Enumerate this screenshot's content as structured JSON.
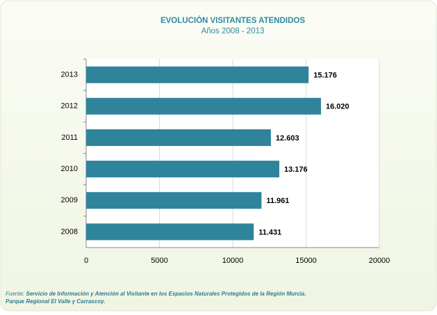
{
  "chart_data": {
    "type": "barh",
    "title": "EVOLUCIÓN VISITANTES ATENDIDOS",
    "subtitle": "Años 2008 - 2013",
    "categories": [
      "2013",
      "2012",
      "2011",
      "2010",
      "2009",
      "2008"
    ],
    "values": [
      15176,
      16020,
      12603,
      13176,
      11961,
      11431
    ],
    "value_labels": [
      "15.176",
      "16.020",
      "12.603",
      "13.176",
      "11.961",
      "11.431"
    ],
    "color": "#2f849b",
    "xlim": [
      0,
      20000
    ],
    "xticks": [
      0,
      5000,
      10000,
      15000,
      20000
    ],
    "grid": true,
    "source_label": "Fuente:",
    "source_lines": [
      "Servicio de Información  y Atención al Visitante en los Espacios Naturales Protegidos de la Región Murcia.",
      "Parque Regional El Valle y Carrascoy."
    ]
  }
}
